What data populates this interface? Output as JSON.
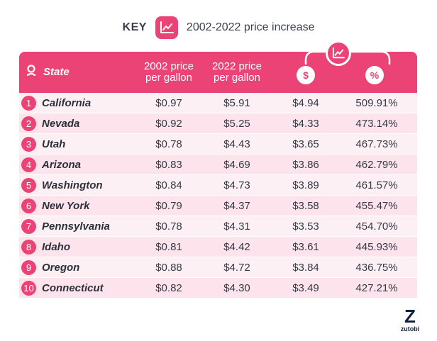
{
  "key": {
    "label": "KEY",
    "text": "2002-2022 price increase",
    "icon": "trend-chart-icon"
  },
  "colors": {
    "accent": "#ec4377",
    "row_odd": "#fdf0f4",
    "row_even": "#fde4ec",
    "text": "#333a45"
  },
  "chart_data": {
    "type": "table",
    "columns": [
      "State",
      "2002 price per gallon",
      "2022 price per gallon",
      "$",
      "%"
    ],
    "header": {
      "state": "State",
      "col_2002_line1": "2002 price",
      "col_2002_line2": "per gallon",
      "col_2022_line1": "2022 price",
      "col_2022_line2": "per gallon",
      "dollar": "$",
      "percent": "%"
    },
    "rows": [
      {
        "rank": "1",
        "state": "California",
        "p2002": "$0.97",
        "p2022": "$5.91",
        "inc_dollar": "$4.94",
        "inc_pct": "509.91%"
      },
      {
        "rank": "2",
        "state": "Nevada",
        "p2002": "$0.92",
        "p2022": "$5.25",
        "inc_dollar": "$4.33",
        "inc_pct": "473.14%"
      },
      {
        "rank": "3",
        "state": "Utah",
        "p2002": "$0.78",
        "p2022": "$4.43",
        "inc_dollar": "$3.65",
        "inc_pct": "467.73%"
      },
      {
        "rank": "4",
        "state": "Arizona",
        "p2002": "$0.83",
        "p2022": "$4.69",
        "inc_dollar": "$3.86",
        "inc_pct": "462.79%"
      },
      {
        "rank": "5",
        "state": "Washington",
        "p2002": "$0.84",
        "p2022": "$4.73",
        "inc_dollar": "$3.89",
        "inc_pct": "461.57%"
      },
      {
        "rank": "6",
        "state": "New York",
        "p2002": "$0.79",
        "p2022": "$4.37",
        "inc_dollar": "$3.58",
        "inc_pct": "455.47%"
      },
      {
        "rank": "7",
        "state": "Pennsylvania",
        "p2002": "$0.78",
        "p2022": "$4.31",
        "inc_dollar": "$3.53",
        "inc_pct": "454.70%"
      },
      {
        "rank": "8",
        "state": "Idaho",
        "p2002": "$0.81",
        "p2022": "$4.42",
        "inc_dollar": "$3.61",
        "inc_pct": "445.93%"
      },
      {
        "rank": "9",
        "state": "Oregon",
        "p2002": "$0.88",
        "p2022": "$4.72",
        "inc_dollar": "$3.84",
        "inc_pct": "436.75%"
      },
      {
        "rank": "10",
        "state": "Connecticut",
        "p2002": "$0.82",
        "p2022": "$4.30",
        "inc_dollar": "$3.49",
        "inc_pct": "427.21%"
      }
    ]
  },
  "logo": {
    "mark": "Z",
    "text": "zutobi"
  }
}
